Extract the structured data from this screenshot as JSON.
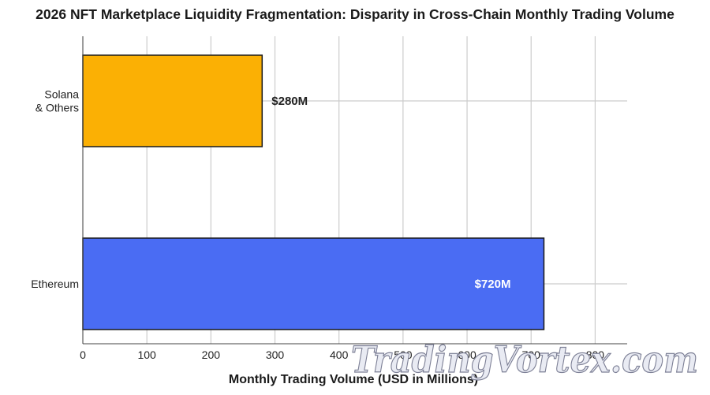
{
  "chart_data": {
    "type": "bar",
    "orientation": "horizontal",
    "title": "2026 NFT Marketplace Liquidity Fragmentation: Disparity in Cross-Chain Monthly Trading Volume",
    "xlabel": "Monthly Trading Volume (USD in Millions)",
    "ylabel": "",
    "categories": [
      "Solana\n& Others",
      "Ethereum"
    ],
    "values": [
      280,
      720
    ],
    "data_labels": [
      "$280M",
      "$720M"
    ],
    "colors": [
      "#fbb004",
      "#4a6cf3"
    ],
    "label_colors": [
      "#222222",
      "#ffffff"
    ],
    "xlim": [
      0,
      850
    ],
    "xticks": [
      0,
      100,
      200,
      300,
      400,
      500,
      600,
      700,
      800
    ],
    "grid": true
  },
  "watermark": "TradingVortex.com"
}
